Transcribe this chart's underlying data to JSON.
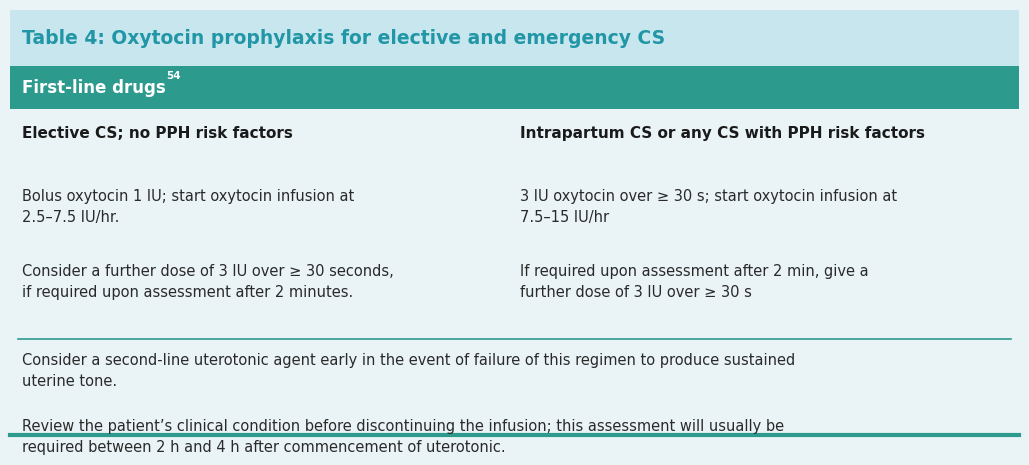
{
  "title": "Table 4: Oxytocin prophylaxis for elective and emergency CS",
  "title_color": "#2196A6",
  "title_fontsize": 13.5,
  "header_text_plain": "First-line drugs",
  "header_superscript": "54",
  "header_bg": "#2d9a8e",
  "header_text_color": "#ffffff",
  "header_fontsize": 12,
  "col1_header": "Elective CS; no PPH risk factors",
  "col2_header": "Intrapartum CS or any CS with PPH risk factors",
  "col_header_color": "#1a1a1a",
  "col_header_fontsize": 11,
  "col1_row1": "Bolus oxytocin 1 IU; start oxytocin infusion at\n2.5–7.5 IU/hr.",
  "col2_row1": "3 IU oxytocin over ≥ 30 s; start oxytocin infusion at\n7.5–15 IU/hr",
  "col1_row2": "Consider a further dose of 3 IU over ≥ 30 seconds,\nif required upon assessment after 2 minutes.",
  "col2_row2": "If required upon assessment after 2 min, give a\nfurther dose of 3 IU over ≥ 30 s",
  "footer_row1": "Consider a second-line uterotonic agent early in the event of failure of this regimen to produce sustained\nuterine tone.",
  "footer_row2": "Review the patient’s clinical condition before discontinuing the infusion; this assessment will usually be\nrequired between 2 h and 4 h after commencement of uterotonic.",
  "body_text_color": "#2a2a2a",
  "body_fontsize": 10.5,
  "bg_color": "#eaf4f7",
  "title_bar_color": "#c8e6ed",
  "divider_color": "#2d9a8e",
  "col_split": 0.495,
  "title_bar_height": 0.13,
  "header_bar_height": 0.1
}
